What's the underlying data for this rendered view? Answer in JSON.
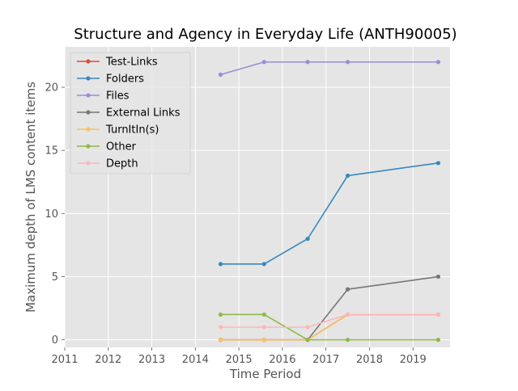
{
  "chart_data": {
    "type": "line",
    "title": "Structure and Agency in Everyday Life (ANTH90005)",
    "xlabel": "Time Period",
    "ylabel": "Maximum depth of LMS content items",
    "xlim": [
      2011,
      2019.85
    ],
    "ylim": [
      -0.6,
      23.2
    ],
    "xticks": [
      2011,
      2012,
      2013,
      2014,
      2015,
      2016,
      2017,
      2018,
      2019
    ],
    "yticks": [
      0,
      5,
      10,
      15,
      20
    ],
    "grid": true,
    "legend_position": "upper-left",
    "x": [
      2014.58,
      2015.58,
      2016.58,
      2017.5,
      2019.58
    ],
    "series": [
      {
        "name": "Test-Links",
        "color": "#E24A33",
        "values": [
          0,
          0,
          0,
          2,
          2
        ]
      },
      {
        "name": "Folders",
        "color": "#348ABD",
        "values": [
          6,
          6,
          8,
          13,
          14
        ]
      },
      {
        "name": "Files",
        "color": "#988ED5",
        "values": [
          21,
          22,
          22,
          22,
          22
        ]
      },
      {
        "name": "External Links",
        "color": "#777777",
        "values": [
          0,
          0,
          0,
          4,
          5
        ]
      },
      {
        "name": "TurnItIn(s)",
        "color": "#FBC15E",
        "values": [
          0,
          0,
          0,
          2,
          2
        ]
      },
      {
        "name": "Other",
        "color": "#8EBA42",
        "values": [
          2,
          2,
          0,
          0,
          0
        ]
      },
      {
        "name": "Depth",
        "color": "#FFB5B8",
        "values": [
          1,
          1,
          1,
          2,
          2
        ]
      }
    ]
  }
}
